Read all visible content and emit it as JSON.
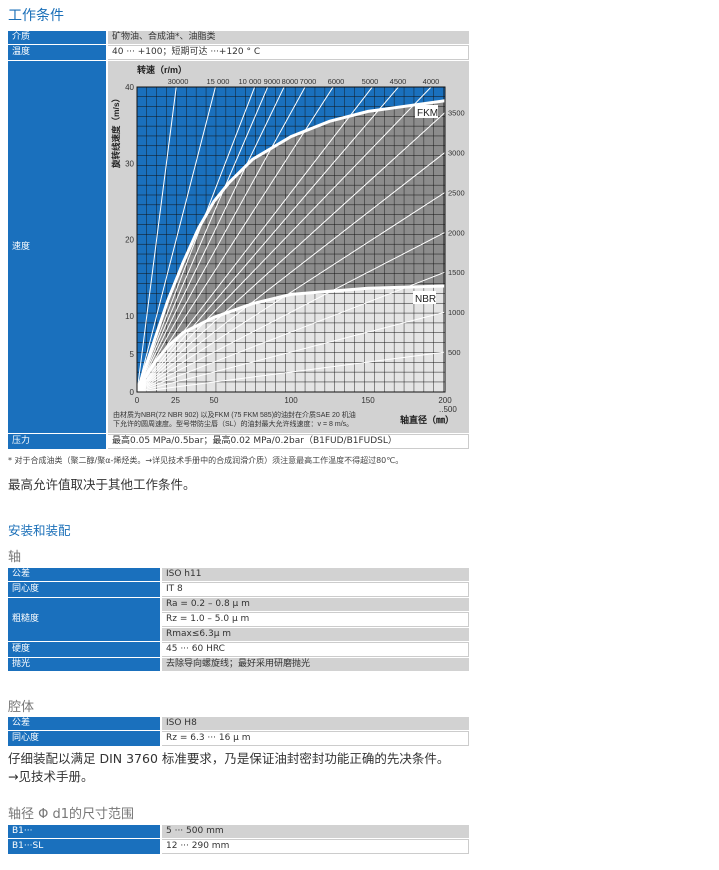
{
  "section1": {
    "title": "工作条件",
    "rows": [
      {
        "k": "介质",
        "v": "矿物油、合成油*、油脂类"
      },
      {
        "k": "温度",
        "v": "40 ··· +100；短期可达 ···+120 ° C"
      },
      {
        "k": "速度",
        "v": ""
      },
      {
        "k": "压力",
        "v": "最高0.05 MPa/0.5bar；最高0.02 MPa/0.2bar（B1FUD/B1FUDSL）"
      }
    ],
    "footnote": "* 对于合成油类（聚二醇/聚α-烯烃类。→详见技术手册中的合成润滑介质）须注意最高工作温度不得超过80℃。",
    "note": "最高允许值取决于其他工作条件。"
  },
  "chart": {
    "top_label": "转速（r/m）",
    "y_label": "旋转线速度（m/s）",
    "x_label": "轴直径（㎜）",
    "caption1": "由材质为NBR(72 NBR 902) 以及FKM (75 FKM 585)的油封在介质SAE 20 机油",
    "caption2": "下允许的圆周速度。型号带防尘唇（SL）的油封最大允许线速度：v = 8 m/s。",
    "x_ticks": [
      "0",
      "25",
      "50",
      "100",
      "150",
      "200"
    ],
    "x_tick_vals": [
      0,
      25,
      50,
      100,
      150,
      200
    ],
    "x_extra": "..500",
    "y_ticks": [
      "0",
      "5",
      "10",
      "20",
      "30",
      "40"
    ],
    "y_tick_vals": [
      0,
      5,
      10,
      20,
      30,
      40
    ],
    "top_rpm": [
      "30000",
      "15 000",
      "10 000",
      "9000",
      "8000",
      "7000",
      "6000",
      "5000",
      "4500",
      "4000"
    ],
    "top_rpm_vals": [
      30000,
      15000,
      10000,
      9000,
      8000,
      7000,
      6000,
      5000,
      4500,
      4000
    ],
    "right_rpm": [
      "3500",
      "3000",
      "2500",
      "2000",
      "1500",
      "1000",
      "500"
    ],
    "right_rpm_vals": [
      3500,
      3000,
      2500,
      2000,
      1500,
      1000,
      500
    ],
    "fkm_label": "FKM",
    "nbr_label": "NBR",
    "fkm_curve": [
      [
        0,
        0
      ],
      [
        10,
        6
      ],
      [
        20,
        12
      ],
      [
        30,
        17
      ],
      [
        40,
        21.5
      ],
      [
        50,
        25
      ],
      [
        60,
        27.5
      ],
      [
        75,
        30.5
      ],
      [
        100,
        33.5
      ],
      [
        125,
        35.5
      ],
      [
        150,
        36.8
      ],
      [
        200,
        38.2
      ]
    ],
    "nbr_curve": [
      [
        0,
        0
      ],
      [
        10,
        3.5
      ],
      [
        20,
        6
      ],
      [
        30,
        7.8
      ],
      [
        50,
        9.8
      ],
      [
        75,
        11.6
      ],
      [
        100,
        12.8
      ],
      [
        150,
        13.6
      ],
      [
        200,
        13.9
      ]
    ],
    "colors": {
      "blue": "#1a70bd",
      "fkm": "#8c8c8c",
      "nbr": "#e4e4e4"
    }
  },
  "section2": {
    "title": "安装和装配",
    "shaft_title": "轴",
    "shaft_rows": [
      {
        "k": "公差",
        "v": "ISO h11"
      },
      {
        "k": "同心度",
        "v": "IT 8"
      },
      {
        "k": "粗糙度",
        "v": "Ra = 0.2 – 0.8 μ m"
      },
      {
        "k": "",
        "v": "Rz = 1.0 – 5.0 μ m"
      },
      {
        "k": "",
        "v": "Rmax≤6.3μ m"
      },
      {
        "k": "硬度",
        "v": "45 ··· 60 HRC"
      },
      {
        "k": "抛光",
        "v": "去除导向螺旋线；最好采用研磨抛光"
      }
    ],
    "housing_title": "腔体",
    "housing_rows": [
      {
        "k": "公差",
        "v": "ISO H8"
      },
      {
        "k": "同心度",
        "v": "Rz = 6.3 ··· 16 μ m"
      }
    ],
    "para1": "仔细装配以满足 DIN 3760 标准要求，乃是保证油封密封功能正确的先决条件。",
    "para2": "→见技术手册。",
    "range_title": "轴径 Φ d1的尺寸范围",
    "range_rows": [
      {
        "k": "B1···",
        "v": "5 ··· 500 mm"
      },
      {
        "k": "B1···SL",
        "v": "12 ··· 290 mm"
      }
    ]
  }
}
